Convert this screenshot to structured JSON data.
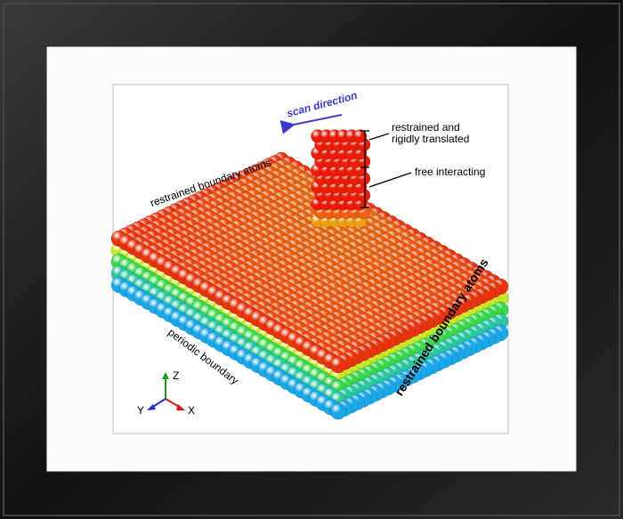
{
  "figure": {
    "scan_direction": "scan direction",
    "tip_upper_label": [
      "restrained and",
      "rigidly translated"
    ],
    "tip_lower_label": "free interacting",
    "top_boundary_label": "restrained boundary atoms",
    "right_boundary_label": "restrained boundary atoms",
    "periodic_label": "periodic boundary",
    "axes": {
      "z": "Z",
      "y": "Y",
      "x": "X"
    }
  }
}
